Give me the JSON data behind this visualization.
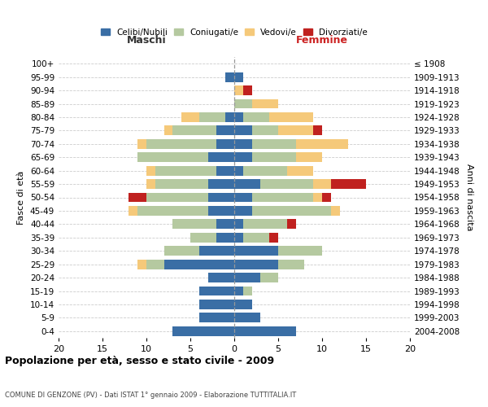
{
  "age_groups": [
    "0-4",
    "5-9",
    "10-14",
    "15-19",
    "20-24",
    "25-29",
    "30-34",
    "35-39",
    "40-44",
    "45-49",
    "50-54",
    "55-59",
    "60-64",
    "65-69",
    "70-74",
    "75-79",
    "80-84",
    "85-89",
    "90-94",
    "95-99",
    "100+"
  ],
  "birth_years": [
    "2004-2008",
    "1999-2003",
    "1994-1998",
    "1989-1993",
    "1984-1988",
    "1979-1983",
    "1974-1978",
    "1969-1973",
    "1964-1968",
    "1959-1963",
    "1954-1958",
    "1949-1953",
    "1944-1948",
    "1939-1943",
    "1934-1938",
    "1929-1933",
    "1924-1928",
    "1919-1923",
    "1914-1918",
    "1909-1913",
    "≤ 1908"
  ],
  "maschi": {
    "celibi": [
      7,
      4,
      4,
      4,
      3,
      8,
      4,
      2,
      2,
      3,
      3,
      3,
      2,
      3,
      2,
      2,
      1,
      0,
      0,
      1,
      0
    ],
    "coniugati": [
      0,
      0,
      0,
      0,
      0,
      2,
      4,
      3,
      5,
      8,
      7,
      6,
      7,
      8,
      8,
      5,
      3,
      0,
      0,
      0,
      0
    ],
    "vedovi": [
      0,
      0,
      0,
      0,
      0,
      1,
      0,
      0,
      0,
      1,
      0,
      1,
      1,
      0,
      1,
      1,
      2,
      0,
      0,
      0,
      0
    ],
    "divorziati": [
      0,
      0,
      0,
      0,
      0,
      0,
      0,
      0,
      0,
      0,
      2,
      0,
      0,
      0,
      0,
      0,
      0,
      0,
      0,
      0,
      0
    ]
  },
  "femmine": {
    "nubili": [
      7,
      3,
      2,
      1,
      3,
      5,
      5,
      1,
      1,
      2,
      2,
      3,
      1,
      2,
      2,
      2,
      1,
      0,
      0,
      1,
      0
    ],
    "coniugate": [
      0,
      0,
      0,
      1,
      2,
      3,
      5,
      3,
      5,
      9,
      7,
      6,
      5,
      5,
      5,
      3,
      3,
      2,
      0,
      0,
      0
    ],
    "vedove": [
      0,
      0,
      0,
      0,
      0,
      0,
      0,
      0,
      0,
      1,
      1,
      2,
      3,
      3,
      6,
      4,
      5,
      3,
      1,
      0,
      0
    ],
    "divorziate": [
      0,
      0,
      0,
      0,
      0,
      0,
      0,
      1,
      1,
      0,
      1,
      4,
      0,
      0,
      0,
      1,
      0,
      0,
      1,
      0,
      0
    ]
  },
  "colors": {
    "celibi_nubili": "#3a6ea5",
    "coniugati": "#b5c9a0",
    "vedovi": "#f5c97a",
    "divorziati": "#c0211f"
  },
  "xlim": 20,
  "title": "Popolazione per età, sesso e stato civile - 2009",
  "subtitle": "COMUNE DI GENZONE (PV) - Dati ISTAT 1° gennaio 2009 - Elaborazione TUTTITALIA.IT",
  "xlabel_left": "Maschi",
  "xlabel_right": "Femmine",
  "ylabel_left": "Fasce di età",
  "ylabel_right": "Anni di nascita",
  "legend_labels": [
    "Celibi/Nubili",
    "Coniugati/e",
    "Vedovi/e",
    "Divorziati/e"
  ],
  "background_color": "#ffffff",
  "grid_color": "#cccccc"
}
